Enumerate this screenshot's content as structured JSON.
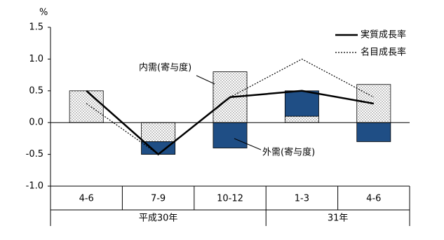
{
  "chart_data": {
    "type": "bar-line",
    "unit": "%",
    "categories": [
      "4-6",
      "7-9",
      "10-12",
      "1-3",
      "4-6"
    ],
    "groups": [
      {
        "name": "平成30年",
        "count": 3
      },
      {
        "name": "31年",
        "count": 2
      }
    ],
    "series": [
      {
        "name": "内需(寄与度)",
        "kind": "bar",
        "color": "#ffffff",
        "pattern": "dots",
        "values": [
          0.5,
          -0.3,
          0.8,
          0.1,
          0.6
        ]
      },
      {
        "name": "外需(寄与度)",
        "kind": "bar",
        "color": "#1f4e85",
        "values": [
          0.0,
          -0.2,
          -0.4,
          0.4,
          -0.3
        ]
      },
      {
        "name": "実質成長率",
        "kind": "line",
        "color": "#000000",
        "style": "solid",
        "values": [
          0.5,
          -0.5,
          0.4,
          0.5,
          0.3
        ]
      },
      {
        "name": "名目成長率",
        "kind": "line",
        "color": "#000000",
        "style": "dotted",
        "values": [
          0.3,
          -0.5,
          0.4,
          1.0,
          0.4
        ]
      }
    ],
    "ylim": [
      -1.0,
      1.5
    ],
    "yticks": [
      {
        "value": -1.0,
        "label": "-1.0"
      },
      -0.5,
      {
        "value": 0.0,
        "label": "0.0"
      },
      0.5,
      {
        "value": 1.0,
        "label": "1.0"
      },
      1.5
    ],
    "legend": "top-right"
  }
}
